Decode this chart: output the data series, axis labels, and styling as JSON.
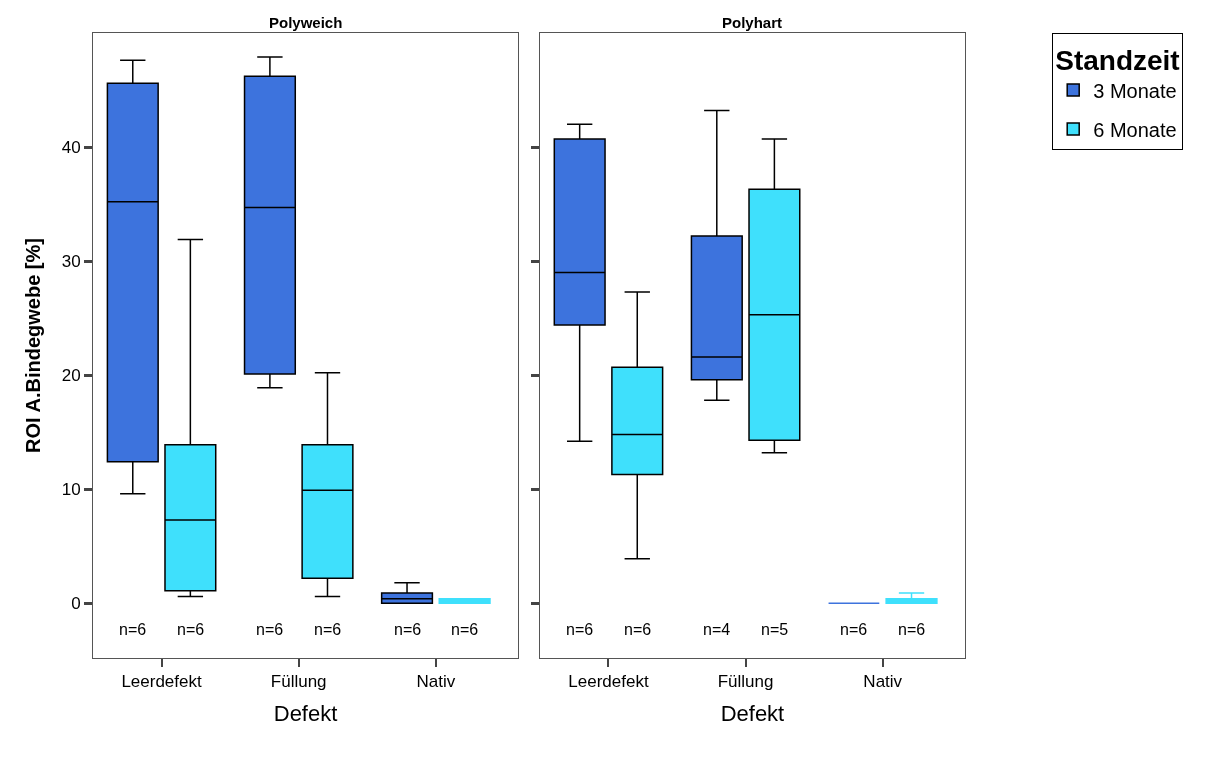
{
  "chart_data": [
    {
      "type": "box",
      "title": "Polyweich",
      "xlabel": "Defekt",
      "ylabel": "ROI A.Bindegwebe [%]",
      "categories": [
        "Leerdefekt",
        "Füllung",
        "Nativ"
      ],
      "ylim": [
        -4.8,
        50
      ],
      "yticks": [
        0,
        10,
        20,
        30,
        40
      ],
      "series": [
        {
          "color": "#3d73dd",
          "boxes": [
            {
              "low": 9.6,
              "q1": 12.4,
              "median": 35.2,
              "q3": 45.6,
              "high": 47.6
            },
            {
              "low": 18.9,
              "q1": 20.1,
              "median": 34.7,
              "q3": 46.2,
              "high": 47.9
            },
            {
              "low": 0,
              "q1": 0,
              "median": 0.4,
              "q3": 0.9,
              "high": 1.8
            }
          ]
        },
        {
          "color": "#3fe0fc",
          "boxes": [
            {
              "low": 0.6,
              "q1": 1.1,
              "median": 7.3,
              "q3": 13.9,
              "high": 31.9
            },
            {
              "low": 0.6,
              "q1": 2.2,
              "median": 9.9,
              "q3": 13.9,
              "high": 20.2
            },
            {
              "low": 0,
              "q1": 0,
              "median": 0.2,
              "q3": 0.4,
              "high": 0.4
            }
          ]
        }
      ],
      "annotations": [
        "n=6",
        "n=6",
        "n=6",
        "n=6",
        "n=6",
        "n=6"
      ]
    },
    {
      "type": "box",
      "title": "Polyhart",
      "xlabel": "Defekt",
      "legend_title": "Standzeit",
      "categories": [
        "Leerdefekt",
        "Füllung",
        "Nativ"
      ],
      "ylim": [
        -4.8,
        50
      ],
      "yticks": [
        0,
        10,
        20,
        30,
        40
      ],
      "tick_labels": "x",
      "legend": "top right",
      "series": [
        {
          "name": "3 Monate",
          "color": "#3d73dd",
          "boxes": [
            {
              "low": 14.2,
              "q1": 24.4,
              "median": 29.0,
              "q3": 40.7,
              "high": 42.0
            },
            {
              "low": 17.8,
              "q1": 19.6,
              "median": 21.6,
              "q3": 32.2,
              "high": 43.2
            },
            {
              "low": 0,
              "q1": 0,
              "median": 0,
              "q3": 0,
              "high": 0
            }
          ]
        },
        {
          "name": "6 Monate",
          "color": "#3fe0fc",
          "boxes": [
            {
              "low": 3.9,
              "q1": 11.3,
              "median": 14.8,
              "q3": 20.7,
              "high": 27.3
            },
            {
              "low": 13.2,
              "q1": 14.3,
              "median": 25.3,
              "q3": 36.3,
              "high": 40.7
            },
            {
              "low": 0,
              "q1": 0,
              "median": 0.2,
              "q3": 0.4,
              "high": 0.9
            }
          ]
        }
      ],
      "annotations": [
        "n=6",
        "n=6",
        "n=4",
        "n=5",
        "n=6",
        "n=6"
      ]
    }
  ]
}
